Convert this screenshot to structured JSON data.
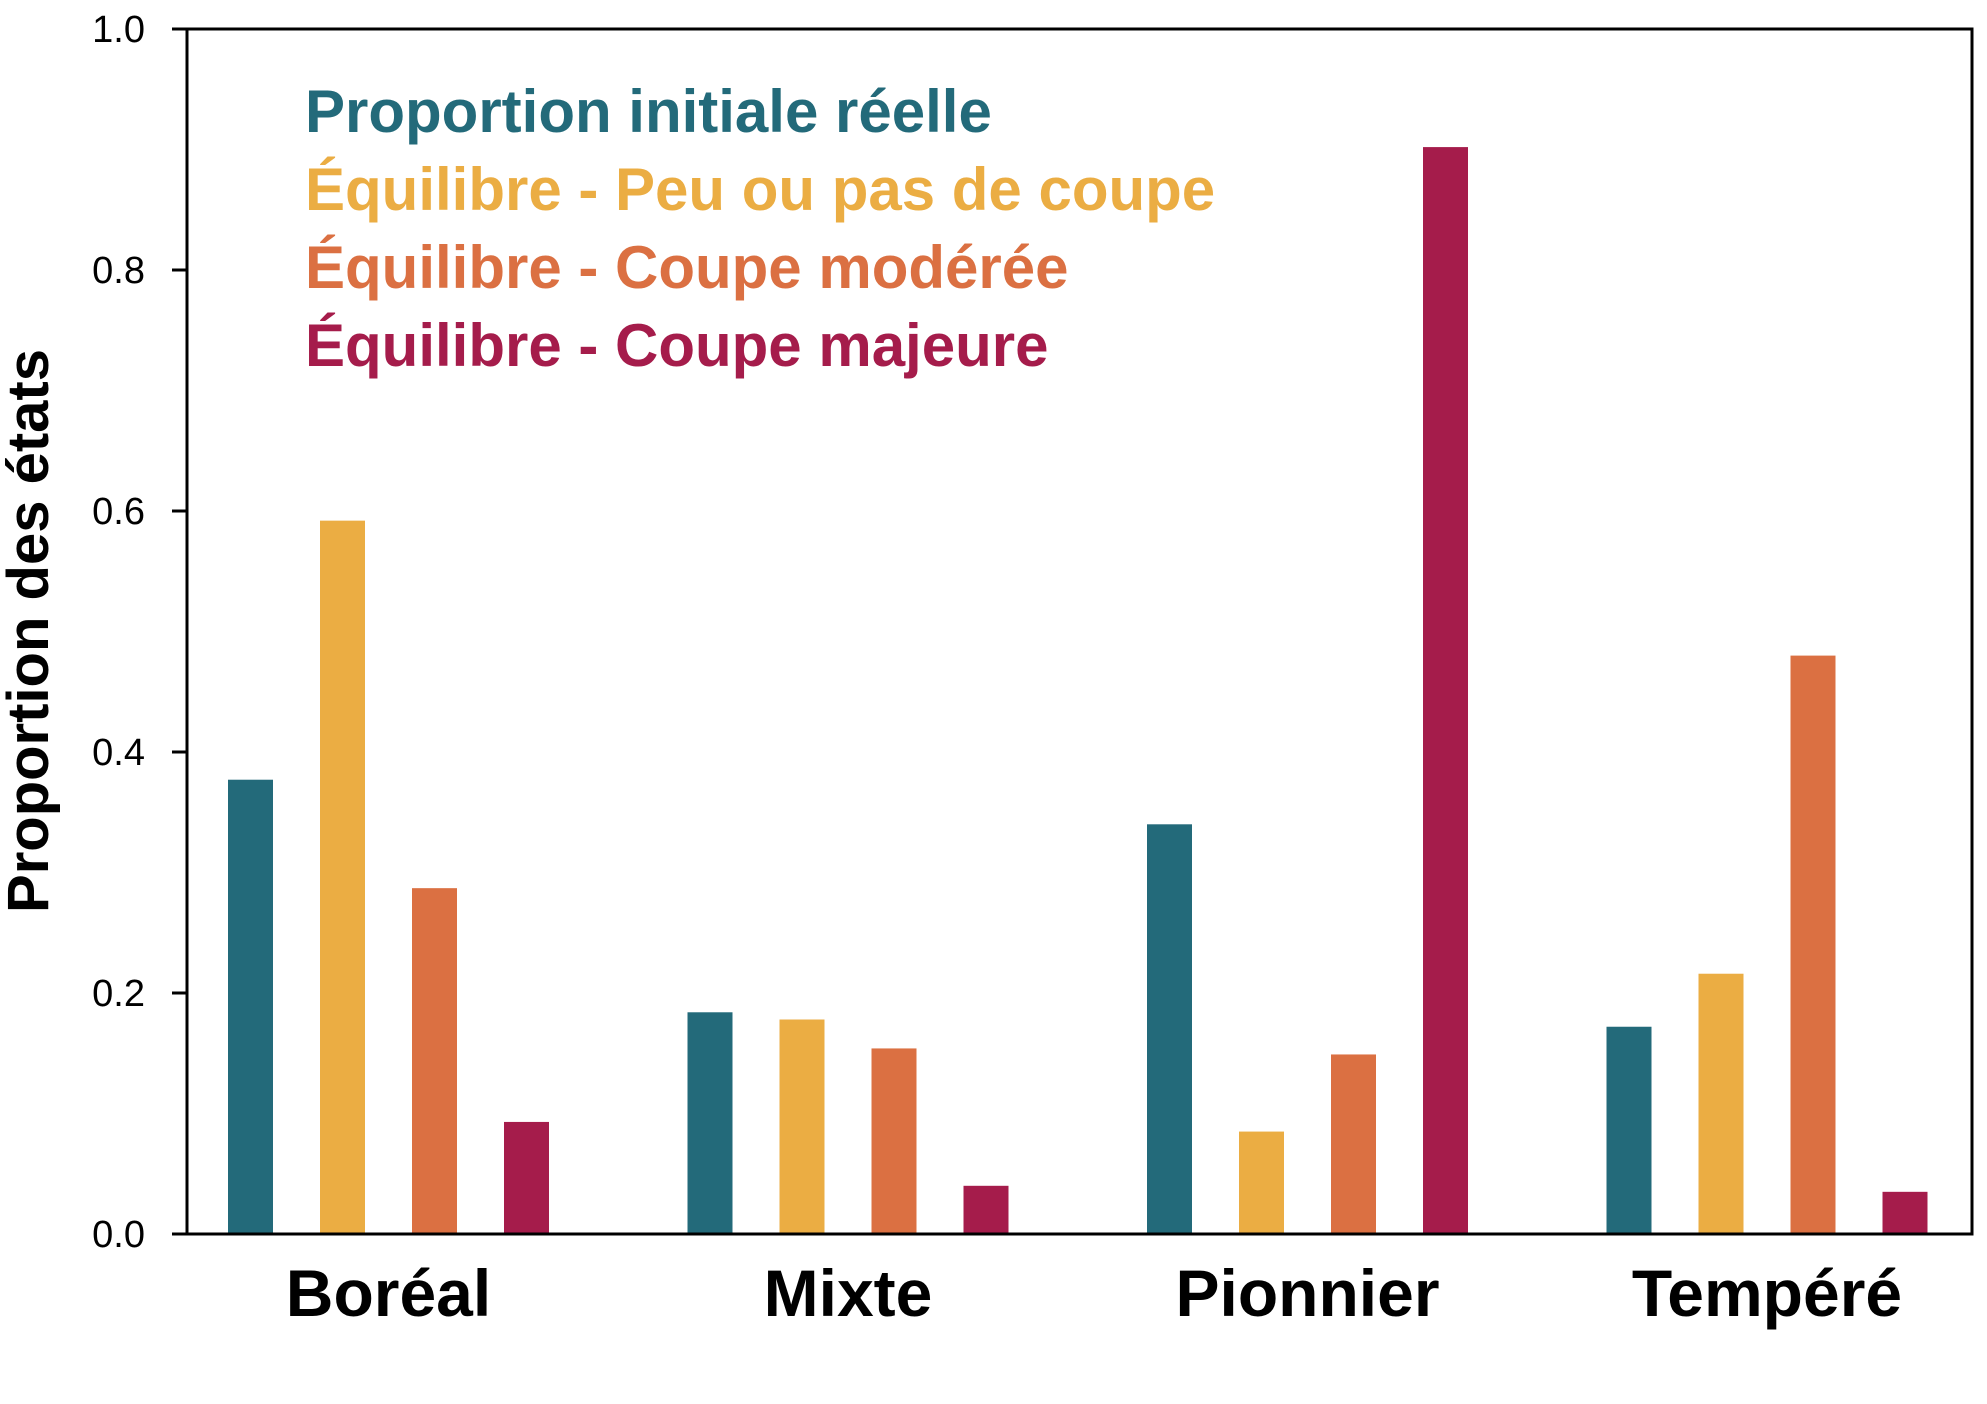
{
  "chart_data": {
    "type": "bar",
    "title": "",
    "xlabel": "",
    "ylabel": "Proportion des états",
    "ylim": [
      0,
      1.0
    ],
    "yticks": [
      "0.0",
      "0.2",
      "0.4",
      "0.6",
      "0.8",
      "1.0"
    ],
    "grid": false,
    "legend_position": "top-left",
    "categories": [
      "Boréal",
      "Mixte",
      "Pionnier",
      "Tempéré"
    ],
    "series": [
      {
        "name": "Proportion initiale réelle",
        "color": "#236a7a",
        "values": [
          0.377,
          0.184,
          0.34,
          0.172
        ]
      },
      {
        "name": "Équilibre - Peu ou pas de coupe",
        "color": "#ebad43",
        "values": [
          0.592,
          0.178,
          0.085,
          0.216
        ]
      },
      {
        "name": "Équilibre - Coupe modérée",
        "color": "#db7042",
        "values": [
          0.287,
          0.154,
          0.149,
          0.48
        ]
      },
      {
        "name": "Équilibre - Coupe majeure",
        "color": "#a51c4b",
        "values": [
          0.093,
          0.04,
          0.902,
          0.035
        ]
      }
    ]
  }
}
